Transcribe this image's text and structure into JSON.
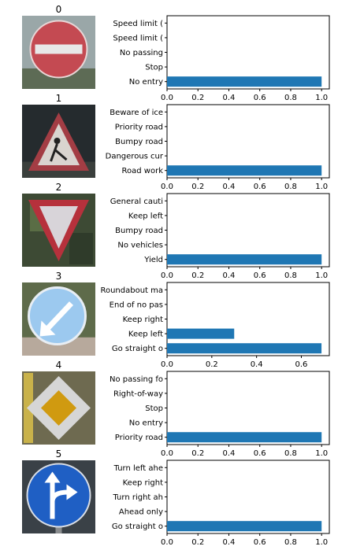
{
  "colors": {
    "bar": "#1f77b4",
    "axis": "#000000",
    "background": "#ffffff"
  },
  "chart_data": [
    {
      "type": "bar",
      "orientation": "horizontal",
      "image_label": "0",
      "image_icon": "no-entry-sign",
      "categories": [
        "No entry",
        "Stop",
        "No passing",
        "Speed limit (",
        "Speed limit ("
      ],
      "values": [
        1.0,
        0.0,
        0.0,
        0.0,
        0.0
      ],
      "xlim": [
        0,
        1.05
      ],
      "xticks": [
        "0.0",
        "0.2",
        "0.4",
        "0.6",
        "0.8",
        "1.0"
      ],
      "grid": false
    },
    {
      "type": "bar",
      "orientation": "horizontal",
      "image_label": "1",
      "image_icon": "road-work-sign",
      "categories": [
        "Road work",
        "Dangerous cur",
        "Bumpy road",
        "Priority road",
        "Beware of ice"
      ],
      "values": [
        1.0,
        0.0,
        0.0,
        0.0,
        0.0
      ],
      "xlim": [
        0,
        1.05
      ],
      "xticks": [
        "0.0",
        "0.2",
        "0.4",
        "0.6",
        "0.8",
        "1.0"
      ],
      "grid": false
    },
    {
      "type": "bar",
      "orientation": "horizontal",
      "image_label": "2",
      "image_icon": "yield-sign",
      "categories": [
        "Yield",
        "No vehicles",
        "Bumpy road",
        "Keep left",
        "General cauti"
      ],
      "values": [
        1.0,
        0.0,
        0.0,
        0.0,
        0.0
      ],
      "xlim": [
        0,
        1.05
      ],
      "xticks": [
        "0.0",
        "0.2",
        "0.4",
        "0.6",
        "0.8",
        "1.0"
      ],
      "grid": false
    },
    {
      "type": "bar",
      "orientation": "horizontal",
      "image_label": "3",
      "image_icon": "keep-left-sign",
      "categories": [
        "Go straight o",
        "Keep left",
        "Keep right",
        "End of no pas",
        "Roundabout ma"
      ],
      "values": [
        0.69,
        0.3,
        0.0,
        0.0,
        0.0
      ],
      "xlim": [
        0,
        0.725
      ],
      "xticks": [
        "0.0",
        "0.2",
        "0.4",
        "0.6"
      ],
      "xtick_values": [
        0,
        0.2,
        0.4,
        0.6
      ],
      "grid": false
    },
    {
      "type": "bar",
      "orientation": "horizontal",
      "image_label": "4",
      "image_icon": "priority-road-sign",
      "categories": [
        "Priority road",
        "No entry",
        "Stop",
        "Right-of-way",
        "No passing fo"
      ],
      "values": [
        1.0,
        0.0,
        0.0,
        0.0,
        0.0
      ],
      "xlim": [
        0,
        1.05
      ],
      "xticks": [
        "0.0",
        "0.2",
        "0.4",
        "0.6",
        "0.8",
        "1.0"
      ],
      "grid": false
    },
    {
      "type": "bar",
      "orientation": "horizontal",
      "image_label": "5",
      "image_icon": "go-straight-or-right-sign",
      "categories": [
        "Go straight o",
        "Ahead only",
        "Turn right ah",
        "Keep right",
        "Turn left ahe"
      ],
      "values": [
        1.0,
        0.0,
        0.0,
        0.0,
        0.0
      ],
      "xlim": [
        0,
        1.05
      ],
      "xticks": [
        "0.0",
        "0.2",
        "0.4",
        "0.6",
        "0.8",
        "1.0"
      ],
      "grid": false
    }
  ]
}
